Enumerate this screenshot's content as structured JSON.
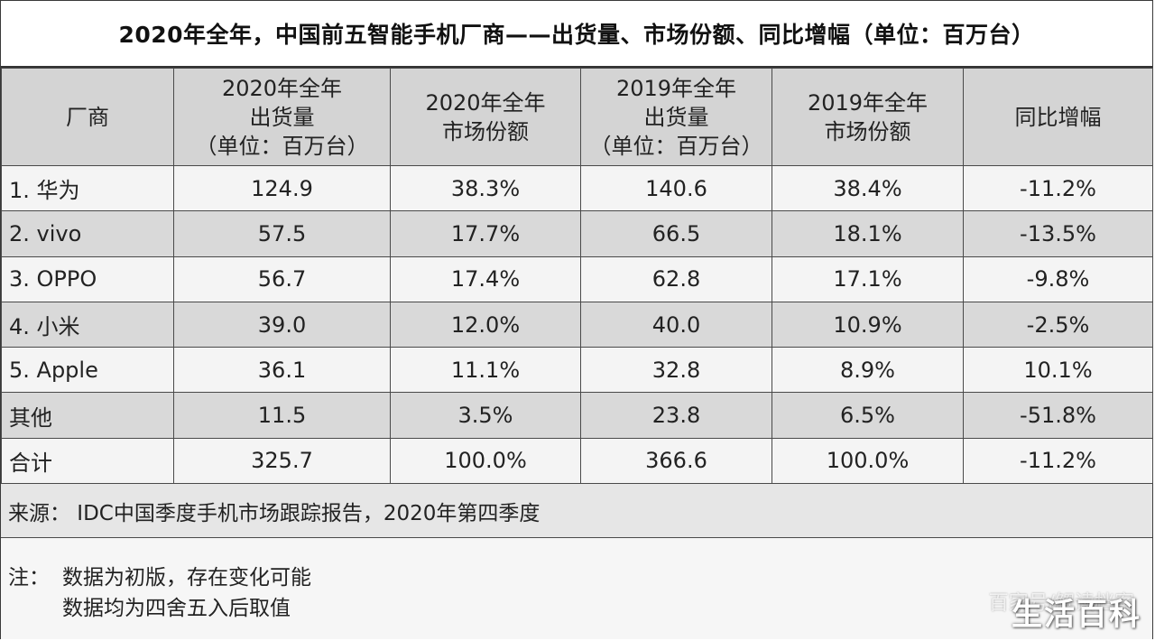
{
  "title": "2020年全年，中国前五智能手机厂商——出货量、市场份额、同比增幅（单位：百万台）",
  "headers": {
    "vendor": "厂商",
    "ship2020": [
      "2020年全年",
      "出货量",
      "（单位：百万台）"
    ],
    "share2020": [
      "2020年全年",
      "市场份额"
    ],
    "ship2019": [
      "2019年全年",
      "出货量",
      "（单位：百万台）"
    ],
    "share2019": [
      "2019年全年",
      "市场份额"
    ],
    "yoy": "同比增幅"
  },
  "rows": [
    {
      "vendor": "1. 华为",
      "ship2020": "124.9",
      "share2020": "38.3%",
      "ship2019": "140.6",
      "share2019": "38.4%",
      "yoy": "-11.2%"
    },
    {
      "vendor": "2. vivo",
      "ship2020": "57.5",
      "share2020": "17.7%",
      "ship2019": "66.5",
      "share2019": "18.1%",
      "yoy": "-13.5%"
    },
    {
      "vendor": "3. OPPO",
      "ship2020": "56.7",
      "share2020": "17.4%",
      "ship2019": "62.8",
      "share2019": "17.1%",
      "yoy": "-9.8%"
    },
    {
      "vendor": "4. 小米",
      "ship2020": "39.0",
      "share2020": "12.0%",
      "ship2019": "40.0",
      "share2019": "10.9%",
      "yoy": "-2.5%"
    },
    {
      "vendor": "5. Apple",
      "ship2020": "36.1",
      "share2020": "11.1%",
      "ship2019": "32.8",
      "share2019": "8.9%",
      "yoy": "10.1%"
    },
    {
      "vendor": "其他",
      "ship2020": "11.5",
      "share2020": "3.5%",
      "ship2019": "23.8",
      "share2019": "6.5%",
      "yoy": "-51.8%"
    },
    {
      "vendor": "合计",
      "ship2020": "325.7",
      "share2020": "100.0%",
      "ship2019": "366.6",
      "share2019": "100.0%",
      "yoy": "-11.2%"
    }
  ],
  "source": "来源： IDC中国季度手机市场跟踪报告，2020年第四季度",
  "notes": {
    "label": "注：",
    "lines": [
      "数据为初版，存在变化可能",
      "数据均为四舍五入后取值"
    ]
  },
  "watermark": {
    "small": "百家号/解读档案",
    "big": "生活百科"
  },
  "chart_data": {
    "type": "table",
    "title": "2020年全年，中国前五智能手机厂商——出货量、市场份额、同比增幅（单位：百万台）",
    "columns": [
      "厂商",
      "2020年全年出货量（单位：百万台）",
      "2020年全年市场份额",
      "2019年全年出货量（单位：百万台）",
      "2019年全年市场份额",
      "同比增幅"
    ],
    "rows": [
      [
        "1. 华为",
        124.9,
        "38.3%",
        140.6,
        "38.4%",
        "-11.2%"
      ],
      [
        "2. vivo",
        57.5,
        "17.7%",
        66.5,
        "18.1%",
        "-13.5%"
      ],
      [
        "3. OPPO",
        56.7,
        "17.4%",
        62.8,
        "17.1%",
        "-9.8%"
      ],
      [
        "4. 小米",
        39.0,
        "12.0%",
        40.0,
        "10.9%",
        "-2.5%"
      ],
      [
        "5. Apple",
        36.1,
        "11.1%",
        32.8,
        "8.9%",
        "10.1%"
      ],
      [
        "其他",
        11.5,
        "3.5%",
        23.8,
        "6.5%",
        "-51.8%"
      ],
      [
        "合计",
        325.7,
        "100.0%",
        366.6,
        "100.0%",
        "-11.2%"
      ]
    ]
  }
}
